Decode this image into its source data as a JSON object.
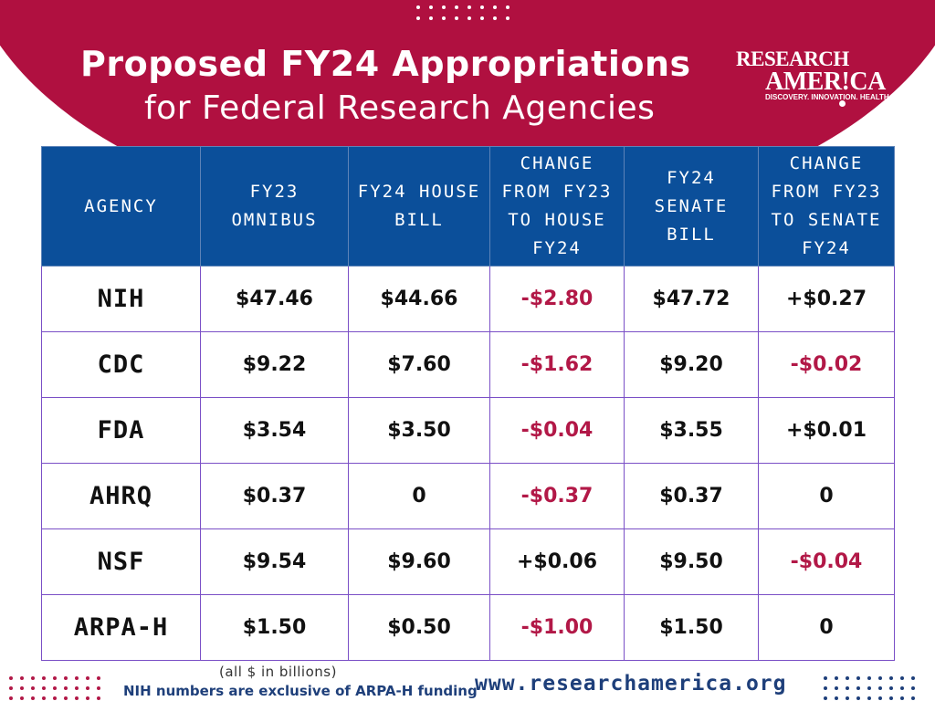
{
  "header": {
    "title_line1": "Proposed FY24 Appropriations",
    "title_line2": "for Federal Research Agencies"
  },
  "logo": {
    "line1": "RESEARCH",
    "line2": "AMER!CA",
    "tagline": "DISCOVERY. INNOVATION. HEALTH."
  },
  "table": {
    "columns": [
      "AGENCY",
      "FY23 OMNIBUS",
      "FY24 HOUSE BILL",
      "CHANGE FROM FY23 TO HOUSE FY24",
      "FY24 SENATE BILL",
      "CHANGE FROM FY23 TO SENATE FY24"
    ],
    "rows": [
      [
        "NIH",
        "$47.46",
        "$44.66",
        "-$2.80",
        "$47.72",
        "+$0.27"
      ],
      [
        "CDC",
        "$9.22",
        "$7.60",
        "-$1.62",
        "$9.20",
        "-$0.02"
      ],
      [
        "FDA",
        "$3.54",
        "$3.50",
        "-$0.04",
        "$3.55",
        "+$0.01"
      ],
      [
        "AHRQ",
        "$0.37",
        "0",
        "-$0.37",
        "$0.37",
        "0"
      ],
      [
        "NSF",
        "$9.54",
        "$9.60",
        "+$0.06",
        "$9.50",
        "-$0.04"
      ],
      [
        "ARPA-H",
        "$1.50",
        "$0.50",
        "-$1.00",
        "$1.50",
        "0"
      ]
    ]
  },
  "footer": {
    "units_note": "(all $ in billions)",
    "nih_note": "NIH numbers are exclusive of ARPA-H funding",
    "website": "www.researchamerica.org"
  },
  "colors": {
    "brand_red": "#b01040",
    "header_blue": "#0b4f9a",
    "negative_red": "#b21847",
    "footer_navy": "#1e3f7a"
  }
}
